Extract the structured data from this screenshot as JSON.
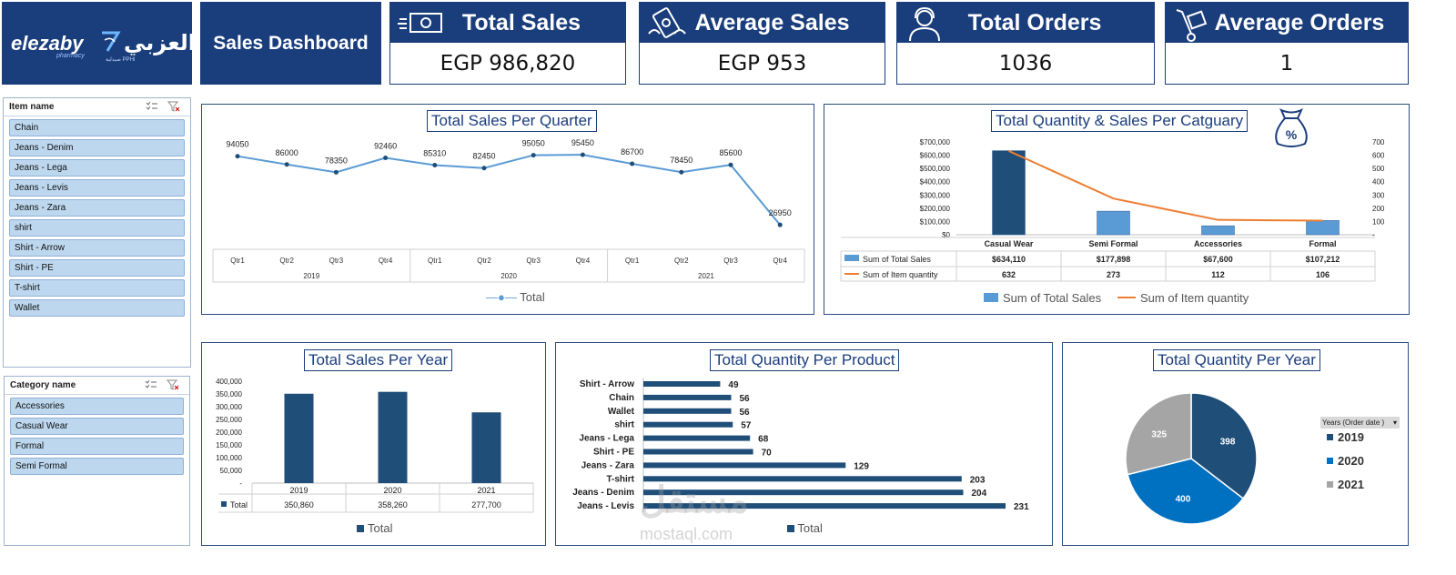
{
  "logo": {
    "en": "elezaby",
    "en_sub": "pharmacy",
    "ar": "العزبي",
    "ar_sub": "صيدلية PPHI"
  },
  "title": "Sales Dashboard",
  "kpis": [
    {
      "label": "Total Sales",
      "value": "EGP 986,820",
      "icon": "money-icon"
    },
    {
      "label": "Average Sales",
      "value": "EGP 953",
      "icon": "flying-money-icon"
    },
    {
      "label": "Total Orders",
      "value": "1036",
      "icon": "customer-service-icon"
    },
    {
      "label": "Average Orders",
      "value": "1",
      "icon": "hand-truck-icon"
    }
  ],
  "slicer_items": {
    "title": "Item name",
    "items": [
      "Chain",
      "Jeans - Denim",
      "Jeans - Lega",
      "Jeans - Levis",
      "Jeans - Zara",
      "shirt",
      "Shirt - Arrow",
      "Shirt - PE",
      "T-shirt",
      "Wallet"
    ]
  },
  "slicer_category": {
    "title": "Category name",
    "items": [
      "Accessories",
      "Casual Wear",
      "Formal",
      "Semi Formal"
    ]
  },
  "quarter_chart": {
    "title": "Total Sales Per Quarter",
    "legend": "Total",
    "chart_data": {
      "type": "line",
      "categories": [
        "Qtr1",
        "Qtr2",
        "Qtr3",
        "Qtr4",
        "Qtr1",
        "Qtr2",
        "Qtr3",
        "Qtr4",
        "Qtr1",
        "Qtr2",
        "Qtr3",
        "Qtr4"
      ],
      "groups": [
        "2019",
        "2020",
        "2021"
      ],
      "series": [
        {
          "name": "Total",
          "values": [
            94050,
            86000,
            78350,
            92460,
            85310,
            82450,
            95050,
            95450,
            86700,
            78450,
            85600,
            26950
          ]
        }
      ]
    }
  },
  "category_chart": {
    "title": "Total Quantity & Sales Per Catguary",
    "chart_data": {
      "type": "bar",
      "categories": [
        "Casual Wear",
        "Semi Formal",
        "Accessories",
        "Formal"
      ],
      "series": [
        {
          "name": "Sum of Total Sales",
          "values": [
            634110,
            177898,
            67600,
            107212
          ],
          "labels": [
            "$634,110",
            "$177,898",
            "$67,600",
            "$107,212"
          ]
        },
        {
          "name": "Sum of Item quantity",
          "values": [
            632,
            273,
            112,
            106
          ],
          "labels": [
            "632",
            "273",
            "112",
            "106"
          ]
        }
      ],
      "left_ticks": [
        "$700,000",
        "$600,000",
        "$500,000",
        "$400,000",
        "$300,000",
        "$200,000",
        "$100,000",
        "$0"
      ],
      "right_ticks": [
        "700",
        "600",
        "500",
        "400",
        "300",
        "200",
        "100",
        "-"
      ],
      "ylim": [
        0,
        700000
      ],
      "y2lim": [
        0,
        700
      ]
    }
  },
  "year_chart": {
    "title": "Total Sales Per Year",
    "chart_data": {
      "type": "bar",
      "categories": [
        "2019",
        "2020",
        "2021"
      ],
      "series": [
        {
          "name": "Total",
          "values": [
            350860,
            358260,
            277700
          ],
          "labels": [
            "350,860",
            "358,260",
            "277,700"
          ]
        }
      ],
      "ticks": [
        "400,000",
        "350,000",
        "300,000",
        "250,000",
        "200,000",
        "150,000",
        "100,000",
        "50,000",
        "-"
      ],
      "ylim": [
        0,
        400000
      ]
    }
  },
  "product_chart": {
    "title": "Total Quantity Per Product",
    "legend": "Total",
    "chart_data": {
      "type": "bar",
      "categories": [
        "Shirt - Arrow",
        "Chain",
        "Wallet",
        "shirt",
        "Jeans - Lega",
        "Shirt - PE",
        "Jeans - Zara",
        "T-shirt",
        "Jeans - Denim",
        "Jeans - Levis"
      ],
      "series": [
        {
          "name": "Total",
          "values": [
            49,
            56,
            56,
            57,
            68,
            70,
            129,
            203,
            204,
            231
          ]
        }
      ]
    }
  },
  "pie_chart": {
    "title": "Total Quantity Per Year",
    "filter_label": "Years (Order date )",
    "chart_data": {
      "type": "pie",
      "categories": [
        "2019",
        "2020",
        "2021"
      ],
      "values": [
        398,
        400,
        325
      ]
    }
  },
  "watermark": {
    "ar": "مستقل",
    "en": "mostaql.com"
  },
  "colors": {
    "navy": "#1a3d7c",
    "bar_dark": "#1f4e79",
    "bar_light": "#5b9bd5",
    "line_orange": "#ed7d31",
    "pie_blue": "#0070c0",
    "pie_gray": "#a5a5a5",
    "slicer": "#bdd7ee"
  }
}
